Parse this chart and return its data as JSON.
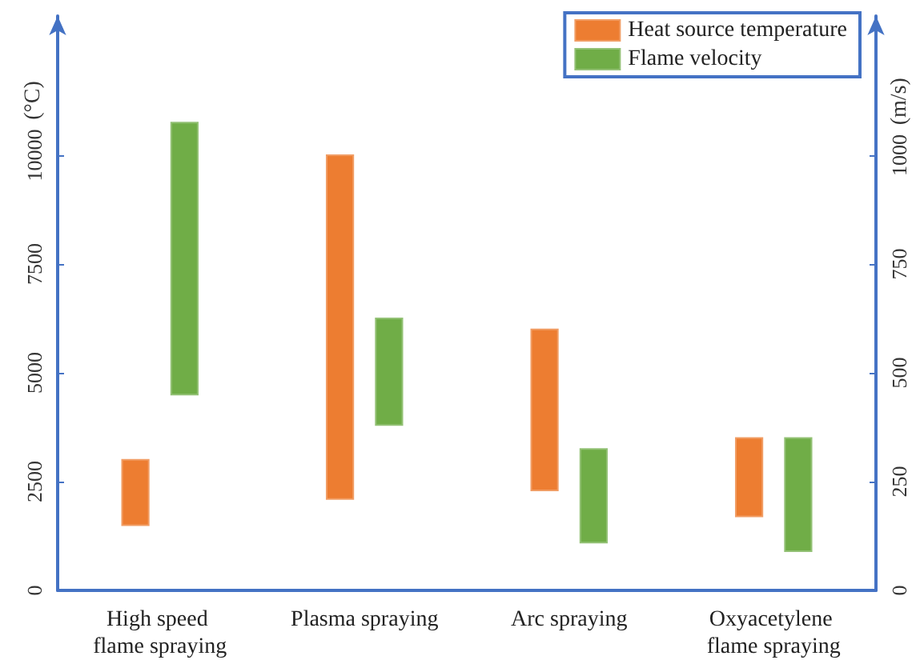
{
  "chart_data": {
    "type": "bar",
    "ylabel": "(°C)",
    "y2label": "(m/s)",
    "categories": [
      "High speed flame spraying",
      "Plasma spraying",
      "Arc spraying",
      "Oxyacetylene flame spraying"
    ],
    "series": [
      {
        "name": "Heat source temperature",
        "color": "#ed7d31",
        "base": [
          1500,
          2100,
          2300,
          1700
        ],
        "values": [
          1500,
          7900,
          3700,
          1800
        ]
      },
      {
        "name": "Flame velocity",
        "color": "#70ad47",
        "axis": "y2",
        "base": [
          450,
          380,
          110,
          90
        ],
        "values": [
          625,
          245,
          215,
          260
        ]
      }
    ],
    "ylim": [
      0,
      13200
    ],
    "yticks": [
      0,
      2500,
      5000,
      7500,
      10000
    ],
    "y2lim": [
      0,
      1320
    ],
    "y2ticks": [
      0,
      250,
      500,
      750,
      1000
    ],
    "legend": "top right",
    "grid": false
  }
}
